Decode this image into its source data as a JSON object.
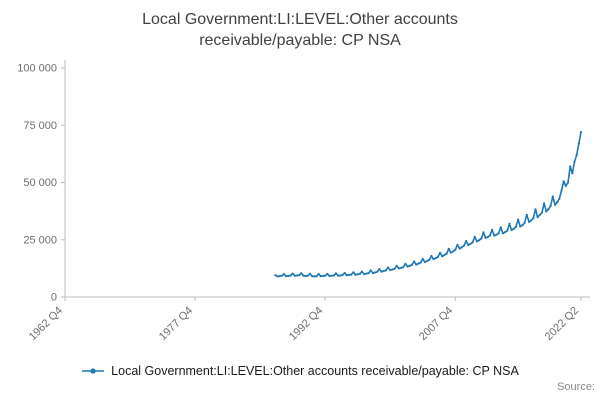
{
  "page": {
    "source_label": "Source:"
  },
  "chart_data": {
    "type": "line",
    "title": "Local Government:LI:LEVEL:Other accounts receivable/payable: CP NSA",
    "xlabel": "",
    "ylabel": "",
    "ylim": [
      0,
      100000
    ],
    "grid": false,
    "legend_position": "bottom",
    "line_color": "#1f77b4",
    "y_ticks": [
      {
        "value": 0,
        "label": "0"
      },
      {
        "value": 25000,
        "label": "25 000"
      },
      {
        "value": 50000,
        "label": "50 000"
      },
      {
        "value": 75000,
        "label": "75 000"
      },
      {
        "value": 100000,
        "label": "100 000"
      }
    ],
    "x_ticks": [
      "1962 Q4",
      "1977 Q4",
      "1992 Q4",
      "2007 Q4",
      "2022 Q2"
    ],
    "x_axis_start": "1962 Q4",
    "x_axis_end": "2022 Q2",
    "series": [
      {
        "name": "Local Government:LI:LEVEL:Other accounts receivable/payable: CP NSA",
        "frequency": "quarterly",
        "start": "1987 Q1",
        "end": "2022 Q2",
        "values": [
          9500,
          9000,
          9100,
          9300,
          10000,
          9100,
          9200,
          9400,
          10200,
          9300,
          9400,
          9500,
          10400,
          9300,
          9200,
          9300,
          10100,
          9100,
          9000,
          9100,
          10000,
          9100,
          9200,
          9300,
          10100,
          9200,
          9300,
          9400,
          10300,
          9300,
          9400,
          9600,
          10500,
          9500,
          9600,
          9800,
          10800,
          9700,
          9900,
          10100,
          11100,
          10000,
          10200,
          10400,
          11600,
          10500,
          10700,
          11000,
          12200,
          11100,
          11300,
          11600,
          12900,
          11800,
          12000,
          12300,
          13600,
          12500,
          12700,
          13100,
          14500,
          13300,
          13600,
          14000,
          15500,
          14200,
          14600,
          15000,
          16600,
          15300,
          15700,
          16200,
          17900,
          16500,
          17000,
          17500,
          19300,
          17800,
          18300,
          18900,
          21000,
          19400,
          19900,
          20600,
          22800,
          21200,
          21700,
          22400,
          24400,
          22700,
          23200,
          23900,
          26300,
          24300,
          24800,
          25500,
          28200,
          25800,
          26200,
          26800,
          29300,
          26800,
          27200,
          27800,
          30400,
          27800,
          28300,
          29000,
          31900,
          29200,
          29800,
          30700,
          33800,
          30800,
          31400,
          32400,
          35900,
          32800,
          33400,
          34400,
          38300,
          34900,
          35800,
          36900,
          40900,
          37400,
          38400,
          39800,
          43900,
          40300,
          41400,
          42900,
          46500,
          50500,
          48500,
          50000,
          57000,
          54000,
          59000,
          62000,
          67000,
          72000
        ]
      }
    ]
  }
}
